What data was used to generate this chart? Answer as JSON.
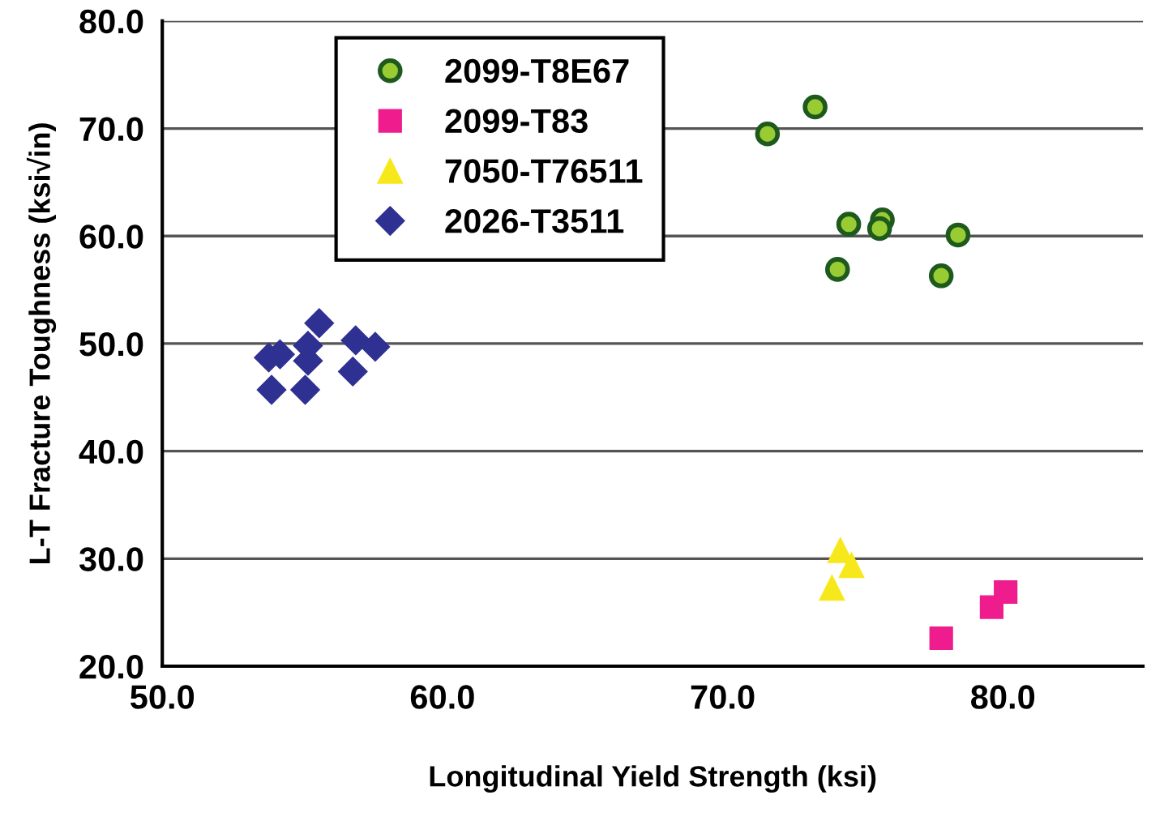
{
  "chart_data": {
    "type": "scatter",
    "xlabel": "Longitudinal Yield Strength (ksi)",
    "ylabel": "L-T Fracture Toughness (ksi√in)",
    "xlim": [
      50,
      85
    ],
    "ylim": [
      20,
      80
    ],
    "xticks": [
      {
        "value": 50,
        "label": "50.0"
      },
      {
        "value": 60,
        "label": "60.0"
      },
      {
        "value": 70,
        "label": "70.0"
      },
      {
        "value": 80,
        "label": "80.0"
      }
    ],
    "yticks": [
      {
        "value": 20,
        "label": "20.0"
      },
      {
        "value": 30,
        "label": "30.0"
      },
      {
        "value": 40,
        "label": "40.0"
      },
      {
        "value": 50,
        "label": "50.0"
      },
      {
        "value": 60,
        "label": "60.0"
      },
      {
        "value": 70,
        "label": "70.0"
      },
      {
        "value": 80,
        "label": "80.0"
      }
    ],
    "grid": "y",
    "legend": "top left",
    "series": [
      {
        "name": "2099-T8E67",
        "color": "#99cc33",
        "marker": "circle",
        "x": [
          71.6,
          73.3,
          74.5,
          75.7,
          75.6,
          78.4,
          74.1,
          77.8
        ],
        "values": [
          69.5,
          72.0,
          61.1,
          61.5,
          60.7,
          60.1,
          56.9,
          56.3
        ]
      },
      {
        "name": "2099-T83",
        "color": "#ee1c8c",
        "marker": "square",
        "x": [
          77.8,
          79.6,
          80.1
        ],
        "values": [
          22.6,
          25.5,
          26.9
        ]
      },
      {
        "name": "7050-T76511",
        "color": "#f7e81c",
        "marker": "triangle",
        "x": [
          74.2,
          74.6,
          73.9
        ],
        "values": [
          30.8,
          29.4,
          27.3
        ]
      },
      {
        "name": "2026-T3511",
        "color": "#2e3192",
        "marker": "diamond",
        "x": [
          55.6,
          53.8,
          54.2,
          55.2,
          55.2,
          53.9,
          55.1,
          56.9,
          57.6,
          56.8
        ],
        "values": [
          51.9,
          48.7,
          49.0,
          49.8,
          48.4,
          45.7,
          45.7,
          50.3,
          49.7,
          47.4
        ]
      }
    ]
  }
}
